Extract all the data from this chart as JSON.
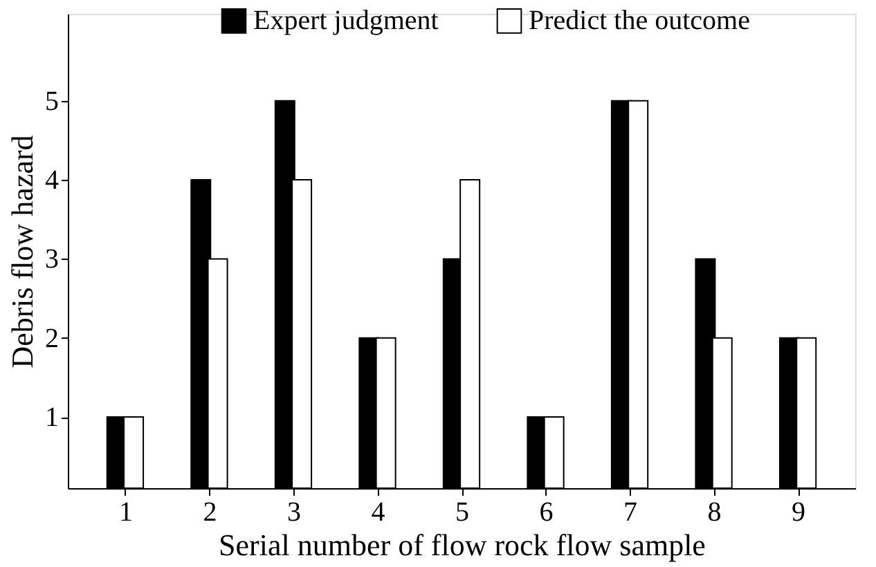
{
  "chart_data": {
    "type": "bar",
    "xlabel": "Serial number of flow rock flow sample",
    "ylabel": "Debris flow hazard",
    "categories": [
      "1",
      "2",
      "3",
      "4",
      "5",
      "6",
      "7",
      "8",
      "9"
    ],
    "series": [
      {
        "name": "Expert judgment",
        "color": "#000000",
        "values": [
          1,
          4,
          5,
          2,
          3,
          1,
          5,
          3,
          2
        ]
      },
      {
        "name": "Predict the outcome",
        "color": "#ffffff",
        "values": [
          1,
          3,
          4,
          2,
          4,
          1,
          5,
          2,
          2
        ]
      }
    ],
    "ylim": [
      0.1,
      6.1
    ],
    "yticks": [
      1,
      2,
      3,
      4,
      5
    ],
    "grid": false,
    "legend": "top"
  }
}
